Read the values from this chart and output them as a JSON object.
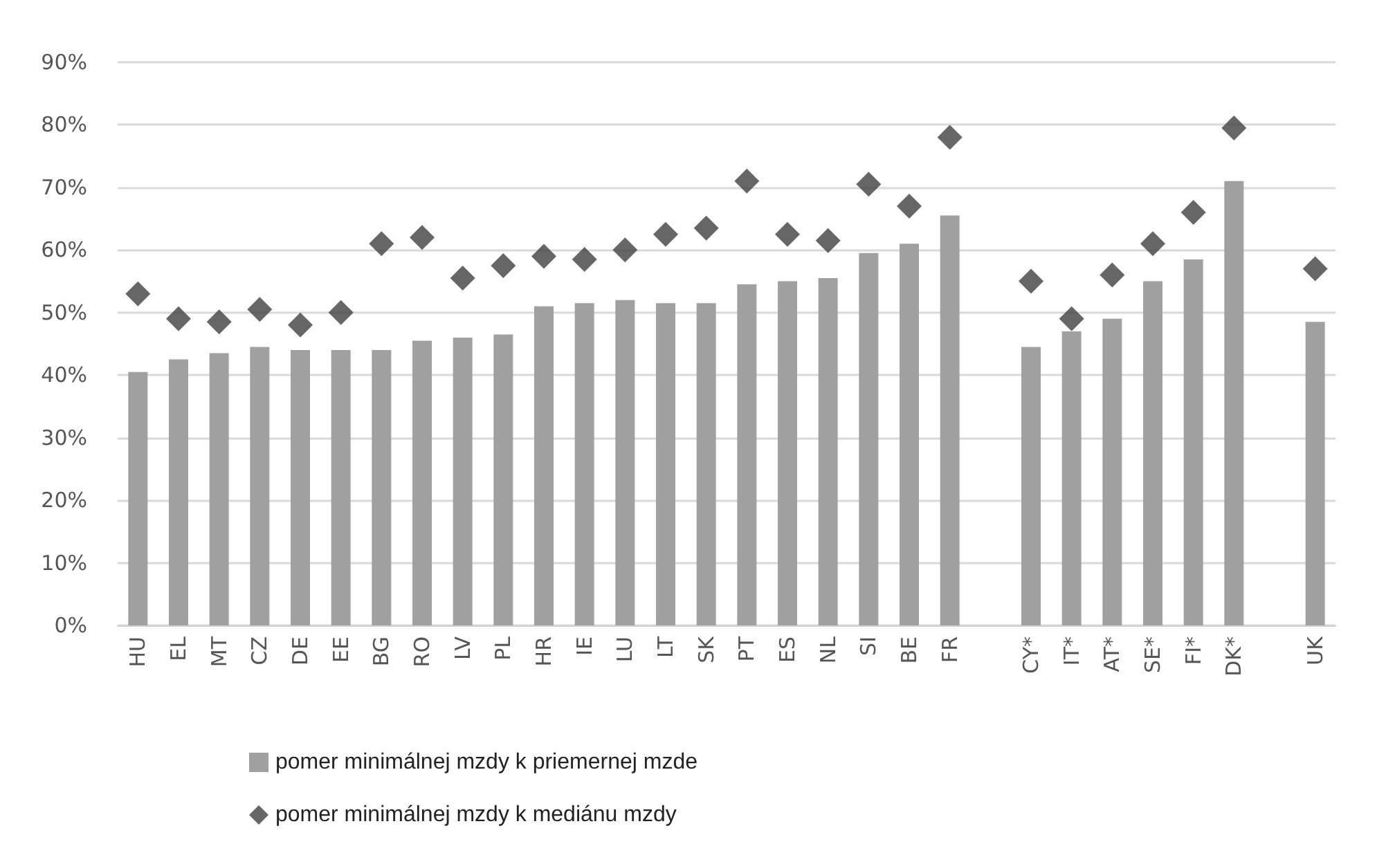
{
  "chart_data": {
    "type": "bar",
    "categories": [
      "HU",
      "EL",
      "MT",
      "CZ",
      "DE",
      "EE",
      "BG",
      "RO",
      "LV",
      "PL",
      "HR",
      "IE",
      "LU",
      "LT",
      "SK",
      "PT",
      "ES",
      "NL",
      "SI",
      "BE",
      "FR",
      null,
      "CY*",
      "IT*",
      "AT*",
      "SE*",
      "FI*",
      "DK*",
      null,
      "UK"
    ],
    "series": [
      {
        "name": "pomer minimálnej mzdy k priemernej mzde",
        "color": "#a0a0a0",
        "values": [
          40.5,
          42.5,
          43.5,
          44.5,
          44,
          44,
          44,
          45.5,
          46,
          46.5,
          51,
          51.5,
          52,
          51.5,
          51.5,
          54.5,
          55,
          55.5,
          59.5,
          61,
          65.5,
          null,
          44.5,
          47,
          49,
          55,
          58.5,
          71,
          null,
          48.5
        ]
      },
      {
        "name": "pomer minimálnej mzdy k mediánu mzdy",
        "type": "scatter",
        "color": "#404040",
        "marker": "diamond",
        "values": [
          53,
          49,
          48.5,
          50.5,
          48,
          50,
          61,
          62,
          55.5,
          57.5,
          59,
          58.5,
          60,
          62.5,
          63.5,
          71,
          62.5,
          61.5,
          70.5,
          67,
          78,
          null,
          55,
          49,
          56,
          61,
          66,
          79.5,
          null,
          57
        ]
      }
    ],
    "ylim": [
      0,
      90
    ],
    "yticks": [
      {
        "value": 0,
        "label": "0%"
      },
      {
        "value": 10,
        "label": "10%"
      },
      {
        "value": 20,
        "label": "20%"
      },
      {
        "value": 30,
        "label": "30%"
      },
      {
        "value": 40,
        "label": "40%"
      },
      {
        "value": 50,
        "label": "50%"
      },
      {
        "value": 60,
        "label": "60%"
      },
      {
        "value": 70,
        "label": "70%"
      },
      {
        "value": 80,
        "label": "80%"
      },
      {
        "value": 90,
        "label": "90%"
      }
    ],
    "grid": "y",
    "legend": "bottom"
  }
}
